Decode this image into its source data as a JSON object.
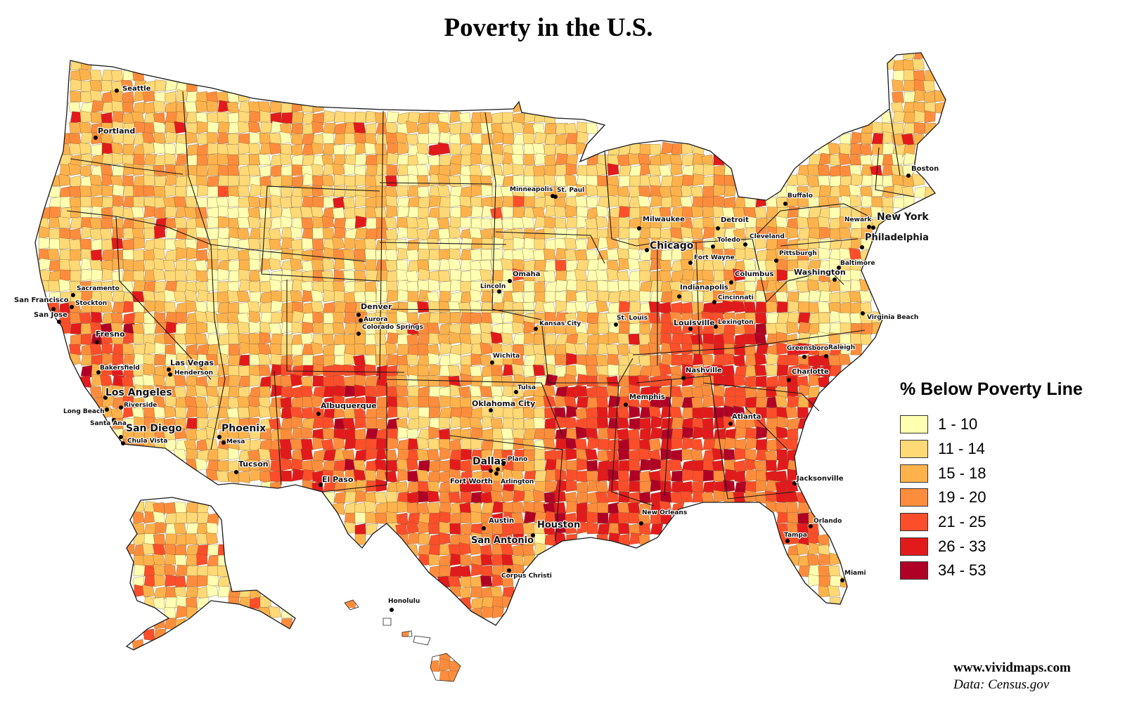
{
  "title": "Poverty in the U.S.",
  "legend": {
    "title": "% Below Poverty Line",
    "bins": [
      {
        "label": "1 - 10",
        "color": "#ffffb2"
      },
      {
        "label": "11 - 14",
        "color": "#fed976"
      },
      {
        "label": "15 - 18",
        "color": "#feb24c"
      },
      {
        "label": "19 - 20",
        "color": "#fd8d3c"
      },
      {
        "label": "21 - 25",
        "color": "#fc4e2a"
      },
      {
        "label": "26 - 33",
        "color": "#e31a1c"
      },
      {
        "label": "34 - 53",
        "color": "#b10026"
      }
    ]
  },
  "cities": [
    {
      "name": "Seattle"
    },
    {
      "name": "Portland"
    },
    {
      "name": "Sacramento"
    },
    {
      "name": "San Francisco"
    },
    {
      "name": "Stockton"
    },
    {
      "name": "San Jose"
    },
    {
      "name": "Fresno"
    },
    {
      "name": "Bakersfield"
    },
    {
      "name": "Los Angeles"
    },
    {
      "name": "Long Beach"
    },
    {
      "name": "Riverside"
    },
    {
      "name": "Santa Ana"
    },
    {
      "name": "San Diego"
    },
    {
      "name": "Chula Vista"
    },
    {
      "name": "Las Vegas"
    },
    {
      "name": "Henderson"
    },
    {
      "name": "Phoenix"
    },
    {
      "name": "Mesa"
    },
    {
      "name": "Tucson"
    },
    {
      "name": "Albuquerque"
    },
    {
      "name": "El Paso"
    },
    {
      "name": "Denver"
    },
    {
      "name": "Aurora"
    },
    {
      "name": "Colorado Springs"
    },
    {
      "name": "Wichita"
    },
    {
      "name": "Tulsa"
    },
    {
      "name": "Oklahoma City"
    },
    {
      "name": "Dallas"
    },
    {
      "name": "Plano"
    },
    {
      "name": "Fort Worth"
    },
    {
      "name": "Arlington"
    },
    {
      "name": "Austin"
    },
    {
      "name": "San Antonio"
    },
    {
      "name": "Houston"
    },
    {
      "name": "Corpus Christi"
    },
    {
      "name": "Minneapolis"
    },
    {
      "name": "St. Paul"
    },
    {
      "name": "Omaha"
    },
    {
      "name": "Lincoln"
    },
    {
      "name": "Kansas City"
    },
    {
      "name": "St. Louis"
    },
    {
      "name": "Milwaukee"
    },
    {
      "name": "Chicago"
    },
    {
      "name": "Detroit"
    },
    {
      "name": "Toledo"
    },
    {
      "name": "Fort Wayne"
    },
    {
      "name": "Cleveland"
    },
    {
      "name": "Columbus"
    },
    {
      "name": "Indianapolis"
    },
    {
      "name": "Cincinnati"
    },
    {
      "name": "Louisville"
    },
    {
      "name": "Lexington"
    },
    {
      "name": "Nashville"
    },
    {
      "name": "Memphis"
    },
    {
      "name": "New Orleans"
    },
    {
      "name": "Atlanta"
    },
    {
      "name": "Charlotte"
    },
    {
      "name": "Greensboro"
    },
    {
      "name": "Raleigh"
    },
    {
      "name": "Jacksonville"
    },
    {
      "name": "Orlando"
    },
    {
      "name": "Tampa"
    },
    {
      "name": "Miami"
    },
    {
      "name": "Buffalo"
    },
    {
      "name": "Pittsburgh"
    },
    {
      "name": "Washington"
    },
    {
      "name": "Baltimore"
    },
    {
      "name": "Philadelphia"
    },
    {
      "name": "Newark"
    },
    {
      "name": "New York"
    },
    {
      "name": "Boston"
    },
    {
      "name": "Virginia Beach"
    },
    {
      "name": "Honolulu"
    }
  ],
  "credit": {
    "site": "www.vividmaps.com",
    "source": "Data: Census.gov"
  }
}
